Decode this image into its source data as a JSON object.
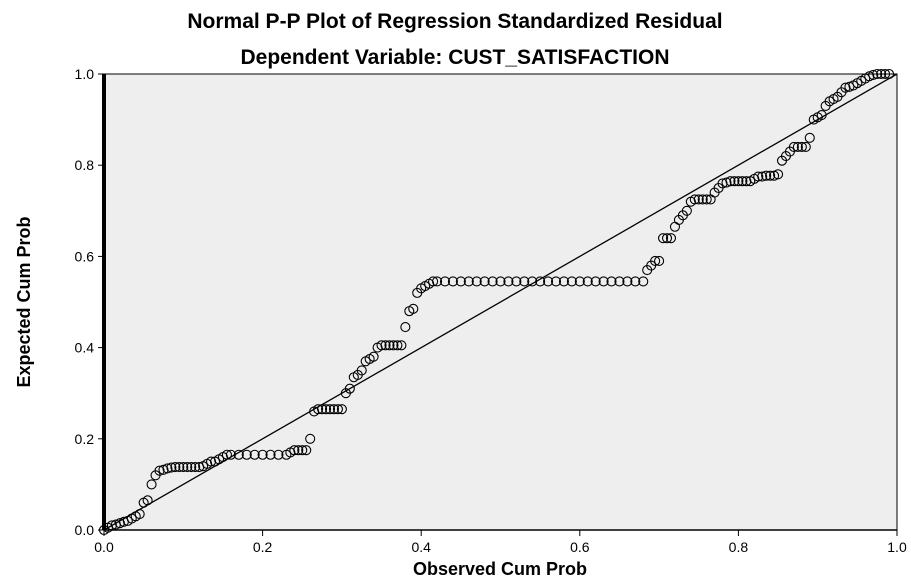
{
  "chart_data": {
    "type": "scatter",
    "title": "Normal P-P Plot of Regression Standardized Residual",
    "subtitle": "Dependent Variable: CUST_SATISFACTION",
    "xlabel": "Observed Cum Prob",
    "ylabel": "Expected Cum Prob",
    "xlim": [
      0.0,
      1.0
    ],
    "ylim": [
      0.0,
      1.0
    ],
    "xticks": [
      "0.0",
      "0.2",
      "0.4",
      "0.6",
      "0.8",
      "1.0"
    ],
    "yticks": [
      "0.0",
      "0.2",
      "0.4",
      "0.6",
      "0.8",
      "1.0"
    ],
    "grid": false,
    "reference_line": [
      [
        0,
        0
      ],
      [
        1,
        1
      ]
    ],
    "plot_background": "#eeeeee",
    "marker": "open-circle",
    "points": [
      [
        0.0,
        0.0
      ],
      [
        0.005,
        0.005
      ],
      [
        0.01,
        0.01
      ],
      [
        0.015,
        0.012
      ],
      [
        0.02,
        0.015
      ],
      [
        0.025,
        0.018
      ],
      [
        0.03,
        0.02
      ],
      [
        0.035,
        0.025
      ],
      [
        0.04,
        0.03
      ],
      [
        0.045,
        0.035
      ],
      [
        0.05,
        0.06
      ],
      [
        0.055,
        0.065
      ],
      [
        0.06,
        0.1
      ],
      [
        0.065,
        0.12
      ],
      [
        0.07,
        0.13
      ],
      [
        0.075,
        0.132
      ],
      [
        0.08,
        0.135
      ],
      [
        0.085,
        0.137
      ],
      [
        0.09,
        0.138
      ],
      [
        0.095,
        0.138
      ],
      [
        0.1,
        0.138
      ],
      [
        0.105,
        0.138
      ],
      [
        0.11,
        0.138
      ],
      [
        0.115,
        0.138
      ],
      [
        0.12,
        0.138
      ],
      [
        0.125,
        0.14
      ],
      [
        0.13,
        0.145
      ],
      [
        0.135,
        0.15
      ],
      [
        0.14,
        0.15
      ],
      [
        0.145,
        0.155
      ],
      [
        0.15,
        0.16
      ],
      [
        0.155,
        0.165
      ],
      [
        0.16,
        0.165
      ],
      [
        0.17,
        0.165
      ],
      [
        0.18,
        0.165
      ],
      [
        0.19,
        0.165
      ],
      [
        0.2,
        0.165
      ],
      [
        0.21,
        0.165
      ],
      [
        0.22,
        0.165
      ],
      [
        0.23,
        0.165
      ],
      [
        0.235,
        0.17
      ],
      [
        0.24,
        0.175
      ],
      [
        0.245,
        0.175
      ],
      [
        0.25,
        0.175
      ],
      [
        0.255,
        0.175
      ],
      [
        0.26,
        0.2
      ],
      [
        0.265,
        0.26
      ],
      [
        0.27,
        0.265
      ],
      [
        0.275,
        0.265
      ],
      [
        0.28,
        0.265
      ],
      [
        0.285,
        0.265
      ],
      [
        0.29,
        0.265
      ],
      [
        0.295,
        0.265
      ],
      [
        0.3,
        0.265
      ],
      [
        0.305,
        0.3
      ],
      [
        0.31,
        0.31
      ],
      [
        0.315,
        0.335
      ],
      [
        0.32,
        0.34
      ],
      [
        0.325,
        0.35
      ],
      [
        0.33,
        0.37
      ],
      [
        0.335,
        0.375
      ],
      [
        0.34,
        0.38
      ],
      [
        0.345,
        0.4
      ],
      [
        0.35,
        0.405
      ],
      [
        0.355,
        0.405
      ],
      [
        0.36,
        0.405
      ],
      [
        0.365,
        0.405
      ],
      [
        0.37,
        0.405
      ],
      [
        0.375,
        0.405
      ],
      [
        0.38,
        0.445
      ],
      [
        0.385,
        0.48
      ],
      [
        0.39,
        0.485
      ],
      [
        0.395,
        0.52
      ],
      [
        0.4,
        0.53
      ],
      [
        0.405,
        0.535
      ],
      [
        0.41,
        0.54
      ],
      [
        0.415,
        0.545
      ],
      [
        0.42,
        0.545
      ],
      [
        0.43,
        0.545
      ],
      [
        0.44,
        0.545
      ],
      [
        0.45,
        0.545
      ],
      [
        0.46,
        0.545
      ],
      [
        0.47,
        0.545
      ],
      [
        0.48,
        0.545
      ],
      [
        0.49,
        0.545
      ],
      [
        0.5,
        0.545
      ],
      [
        0.51,
        0.545
      ],
      [
        0.52,
        0.545
      ],
      [
        0.53,
        0.545
      ],
      [
        0.54,
        0.545
      ],
      [
        0.55,
        0.545
      ],
      [
        0.56,
        0.545
      ],
      [
        0.57,
        0.545
      ],
      [
        0.58,
        0.545
      ],
      [
        0.59,
        0.545
      ],
      [
        0.6,
        0.545
      ],
      [
        0.61,
        0.545
      ],
      [
        0.62,
        0.545
      ],
      [
        0.63,
        0.545
      ],
      [
        0.64,
        0.545
      ],
      [
        0.65,
        0.545
      ],
      [
        0.66,
        0.545
      ],
      [
        0.67,
        0.545
      ],
      [
        0.68,
        0.545
      ],
      [
        0.685,
        0.57
      ],
      [
        0.69,
        0.58
      ],
      [
        0.695,
        0.59
      ],
      [
        0.7,
        0.59
      ],
      [
        0.705,
        0.64
      ],
      [
        0.71,
        0.64
      ],
      [
        0.715,
        0.64
      ],
      [
        0.72,
        0.665
      ],
      [
        0.725,
        0.68
      ],
      [
        0.73,
        0.69
      ],
      [
        0.735,
        0.7
      ],
      [
        0.74,
        0.72
      ],
      [
        0.745,
        0.725
      ],
      [
        0.75,
        0.725
      ],
      [
        0.755,
        0.725
      ],
      [
        0.76,
        0.725
      ],
      [
        0.765,
        0.725
      ],
      [
        0.77,
        0.74
      ],
      [
        0.775,
        0.75
      ],
      [
        0.78,
        0.76
      ],
      [
        0.785,
        0.762
      ],
      [
        0.79,
        0.765
      ],
      [
        0.795,
        0.765
      ],
      [
        0.8,
        0.765
      ],
      [
        0.805,
        0.765
      ],
      [
        0.81,
        0.765
      ],
      [
        0.815,
        0.765
      ],
      [
        0.82,
        0.77
      ],
      [
        0.825,
        0.775
      ],
      [
        0.83,
        0.775
      ],
      [
        0.835,
        0.777
      ],
      [
        0.84,
        0.777
      ],
      [
        0.845,
        0.777
      ],
      [
        0.85,
        0.78
      ],
      [
        0.855,
        0.81
      ],
      [
        0.86,
        0.82
      ],
      [
        0.865,
        0.83
      ],
      [
        0.87,
        0.84
      ],
      [
        0.875,
        0.84
      ],
      [
        0.88,
        0.84
      ],
      [
        0.885,
        0.84
      ],
      [
        0.89,
        0.86
      ],
      [
        0.895,
        0.9
      ],
      [
        0.9,
        0.905
      ],
      [
        0.905,
        0.91
      ],
      [
        0.91,
        0.93
      ],
      [
        0.915,
        0.94
      ],
      [
        0.92,
        0.945
      ],
      [
        0.925,
        0.95
      ],
      [
        0.93,
        0.96
      ],
      [
        0.935,
        0.97
      ],
      [
        0.94,
        0.972
      ],
      [
        0.945,
        0.975
      ],
      [
        0.95,
        0.98
      ],
      [
        0.955,
        0.985
      ],
      [
        0.96,
        0.99
      ],
      [
        0.965,
        0.995
      ],
      [
        0.97,
        0.998
      ],
      [
        0.975,
        1.0
      ],
      [
        0.98,
        1.0
      ],
      [
        0.985,
        1.0
      ],
      [
        0.99,
        1.0
      ]
    ]
  }
}
